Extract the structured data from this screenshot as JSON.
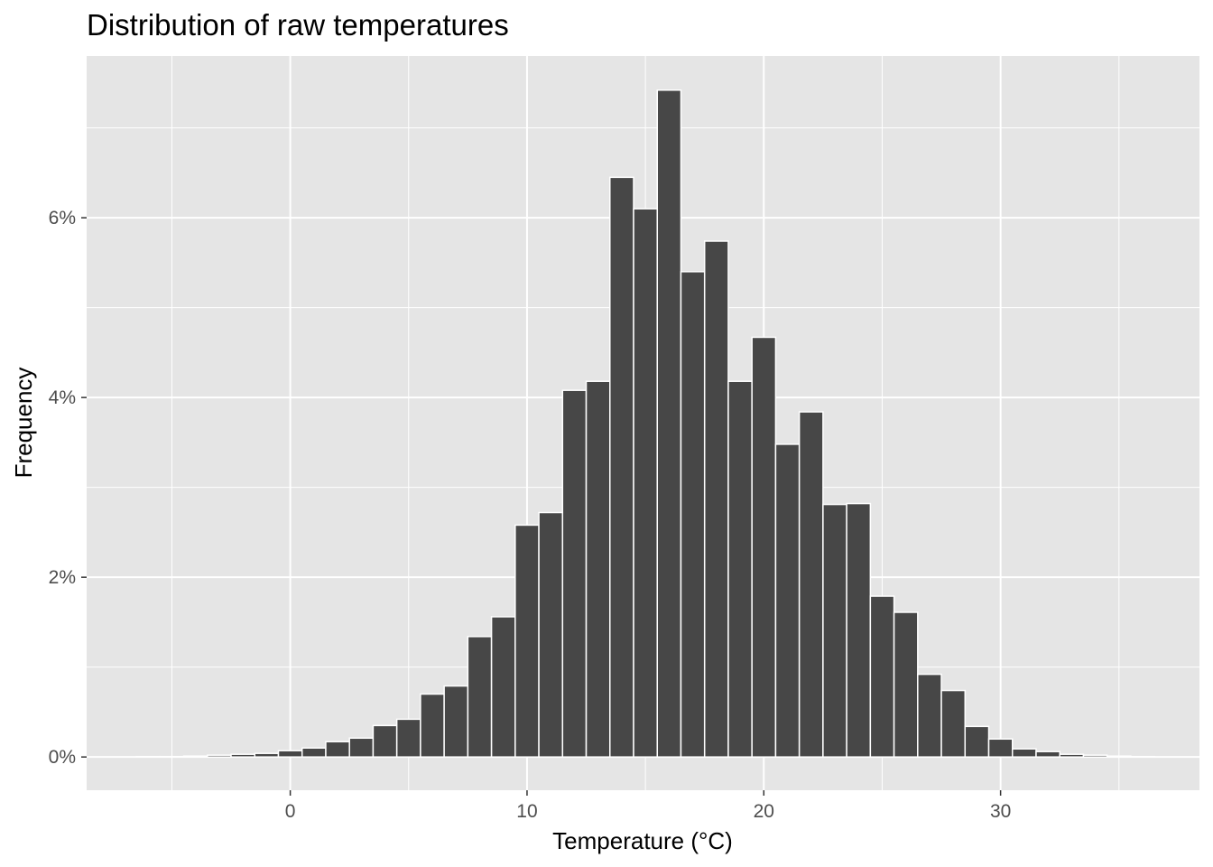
{
  "chart_data": {
    "type": "bar",
    "title": "Distribution of raw temperatures",
    "xlabel": "Temperature (°C)",
    "ylabel": "Frequency",
    "bin_width": 1,
    "x": [
      -6,
      -5,
      -4,
      -3,
      -2,
      -1,
      0,
      1,
      2,
      3,
      4,
      5,
      6,
      7,
      8,
      9,
      10,
      11,
      12,
      13,
      14,
      15,
      16,
      17,
      18,
      19,
      20,
      21,
      22,
      23,
      24,
      25,
      26,
      27,
      28,
      29,
      30,
      31,
      32,
      33,
      34,
      35,
      36
    ],
    "values": [
      0.005,
      0.005,
      0.01,
      0.02,
      0.03,
      0.04,
      0.07,
      0.1,
      0.17,
      0.21,
      0.35,
      0.42,
      0.7,
      0.79,
      1.34,
      1.56,
      2.58,
      2.72,
      4.08,
      4.18,
      6.45,
      6.1,
      7.42,
      5.4,
      5.74,
      4.18,
      4.67,
      3.48,
      3.84,
      2.81,
      2.82,
      1.79,
      1.61,
      0.92,
      0.74,
      0.34,
      0.2,
      0.09,
      0.06,
      0.03,
      0.02,
      0.01,
      0.005
    ],
    "xlim": [
      -8.6,
      38.4
    ],
    "ylim": [
      -0.37,
      7.8
    ],
    "x_ticks": [
      0,
      10,
      20,
      30
    ],
    "x_tick_labels": [
      "0",
      "10",
      "20",
      "30"
    ],
    "y_ticks": [
      0,
      2,
      4,
      6
    ],
    "y_tick_labels": [
      "0%",
      "2%",
      "4%",
      "6%"
    ],
    "grid": true,
    "colors": {
      "panel_background": "#e5e5e5",
      "grid": "#ffffff",
      "bar_fill": "#474747",
      "bar_outline": "#ffffff"
    }
  }
}
